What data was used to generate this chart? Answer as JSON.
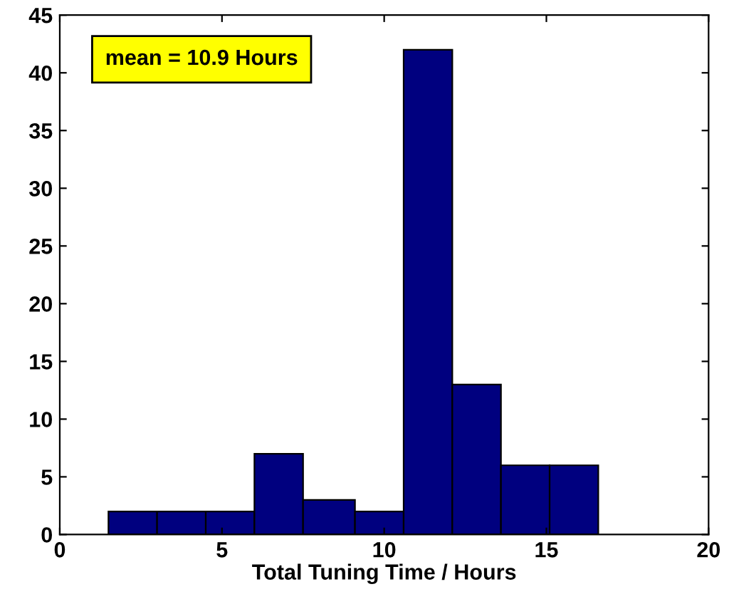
{
  "chart_data": {
    "type": "histogram",
    "xlabel": "Total Tuning Time / Hours",
    "bins": [
      1.5,
      3.0,
      4.5,
      6.0,
      7.5,
      9.1,
      10.6,
      12.1,
      13.6,
      15.1,
      16.6
    ],
    "values": [
      2,
      2,
      2,
      7,
      3,
      2,
      42,
      13,
      6,
      6
    ],
    "color": "#00007f",
    "xlim": [
      0,
      20
    ],
    "xticks": [
      0,
      5,
      10,
      15,
      20
    ],
    "ylim": [
      0,
      45
    ],
    "yticks": [
      0,
      5,
      10,
      15,
      20,
      25,
      30,
      35,
      40,
      45
    ],
    "grid": false,
    "annotations": [
      "mean = 10.9 Hours"
    ]
  }
}
